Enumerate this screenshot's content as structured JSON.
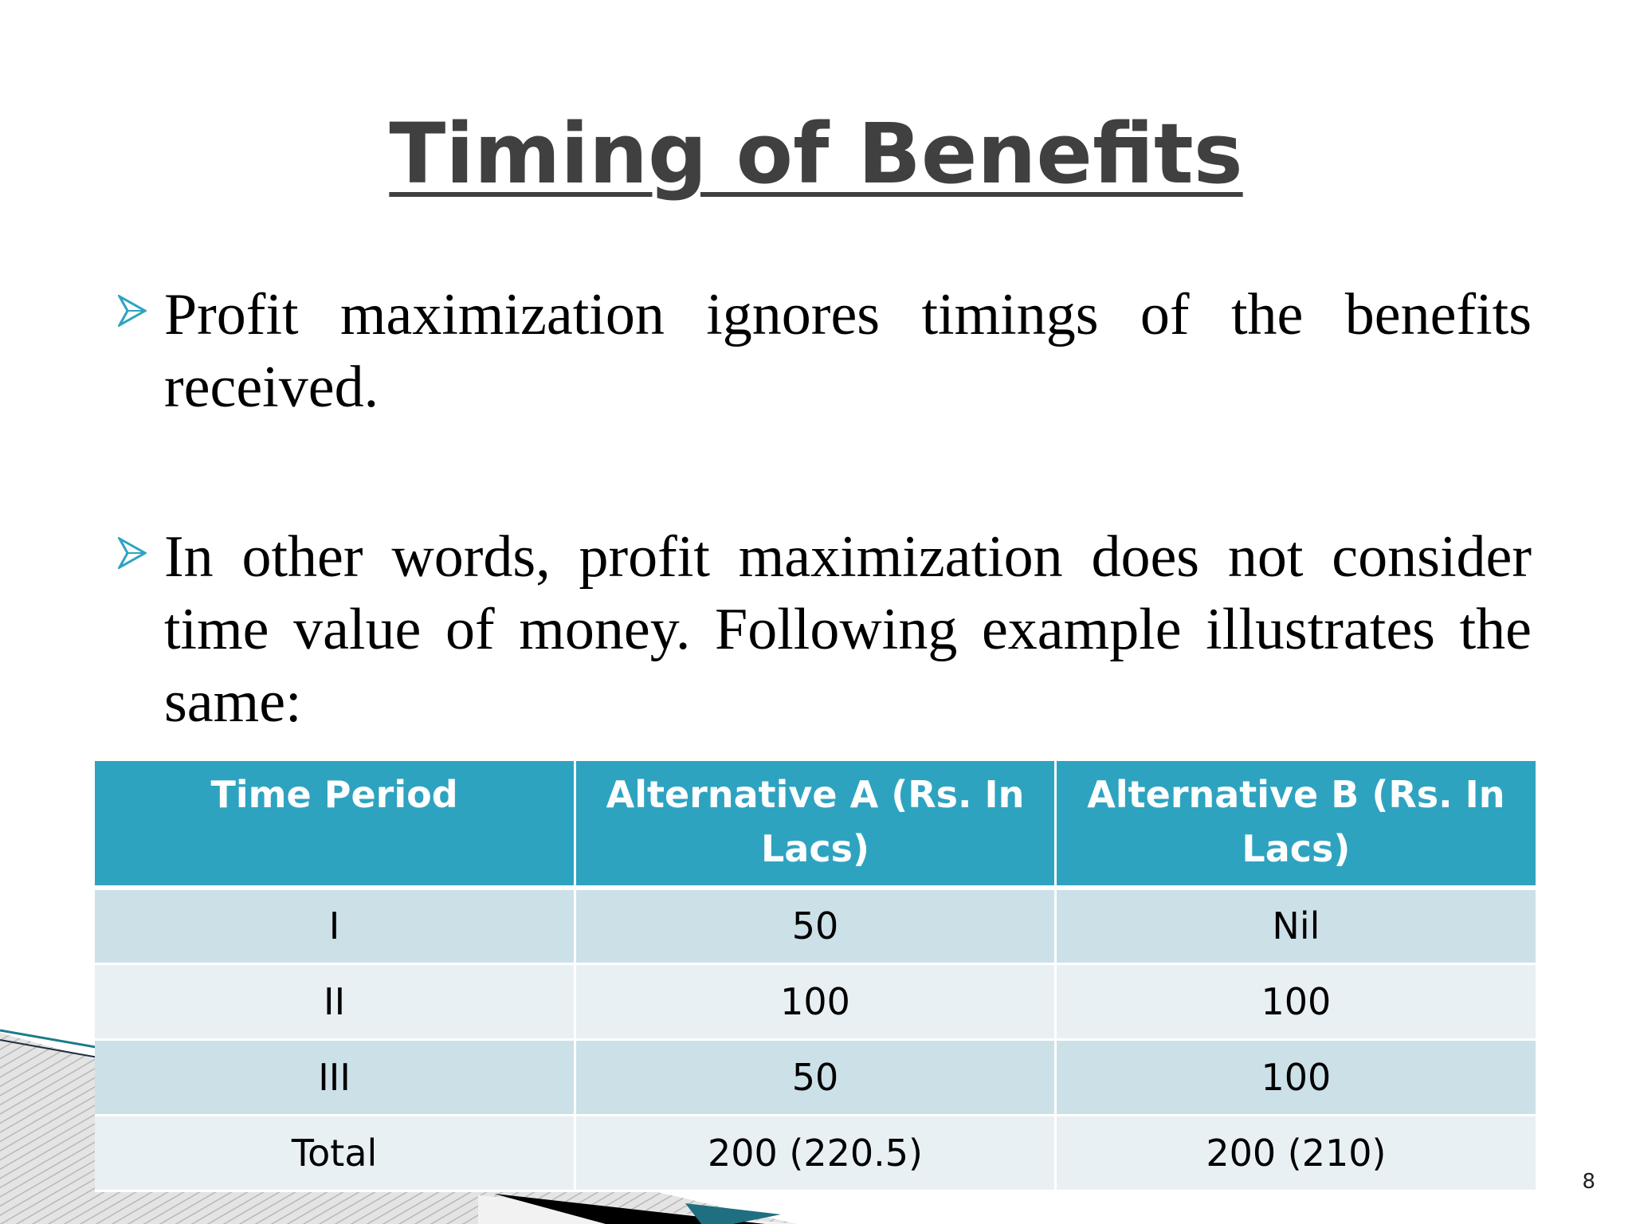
{
  "slide": {
    "title": "Timing of Benefits",
    "bullets": [
      {
        "text": "Profit maximization ignores timings of the benefits received."
      },
      {
        "text": "In other words, profit maximization does not consider time value of money. Following example illustrates the same:"
      }
    ],
    "bullet_icon": "chevron-right-arrow-icon",
    "page_number": "8"
  },
  "table": {
    "headers": [
      "Time Period",
      "Alternative A (Rs. In Lacs)",
      "Alternative B (Rs. In Lacs)"
    ],
    "rows": [
      [
        "I",
        "50",
        "Nil"
      ],
      [
        "II",
        "100",
        "100"
      ],
      [
        "III",
        "50",
        "100"
      ],
      [
        "Total",
        "200 (220.5)",
        "200 (210)"
      ]
    ]
  },
  "colors": {
    "title": "#404040",
    "header_bg": "#2ea3c0",
    "row_dark": "#cce0e8",
    "row_light": "#e8f0f4",
    "bullet_arrow": "#2ea3c0"
  }
}
